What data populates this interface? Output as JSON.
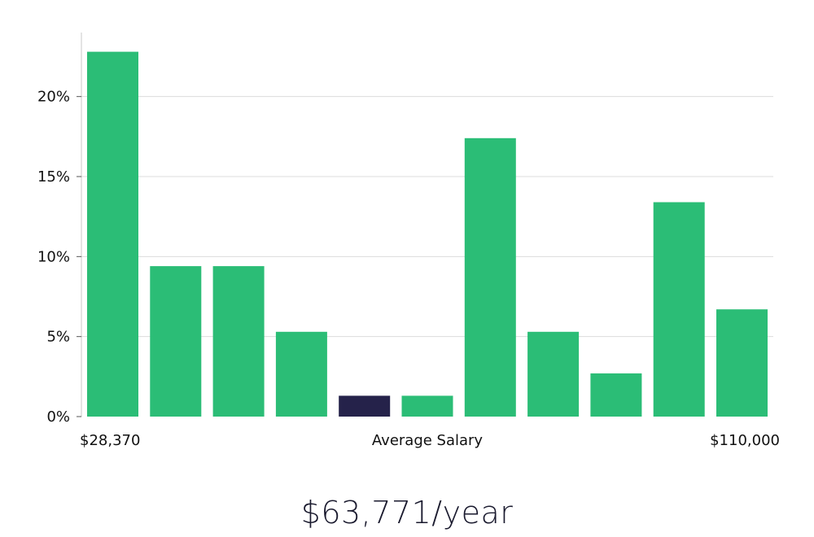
{
  "colors": {
    "bar": "#2bbd76",
    "bar_highlight": "#25224a",
    "grid": "#dcdcdc",
    "axis": "#c8c8c8"
  },
  "chart_data": {
    "type": "bar",
    "categories": [
      "1",
      "2",
      "3",
      "4",
      "5",
      "6",
      "7",
      "8",
      "9",
      "10",
      "11"
    ],
    "values": [
      22.8,
      9.4,
      9.4,
      5.3,
      1.3,
      1.3,
      17.4,
      5.3,
      2.7,
      13.4,
      6.7
    ],
    "highlight_index": 4,
    "ylim": [
      0,
      24
    ],
    "yticks": [
      0,
      5,
      10,
      15,
      20
    ],
    "ytick_labels": [
      "0%",
      "5%",
      "10%",
      "15%",
      "20%"
    ],
    "grid": true,
    "x_min_label": "$28,370",
    "xlabel": "Average Salary",
    "x_max_label": "$110,000"
  },
  "salary": {
    "value_label": "$63,771/year"
  }
}
